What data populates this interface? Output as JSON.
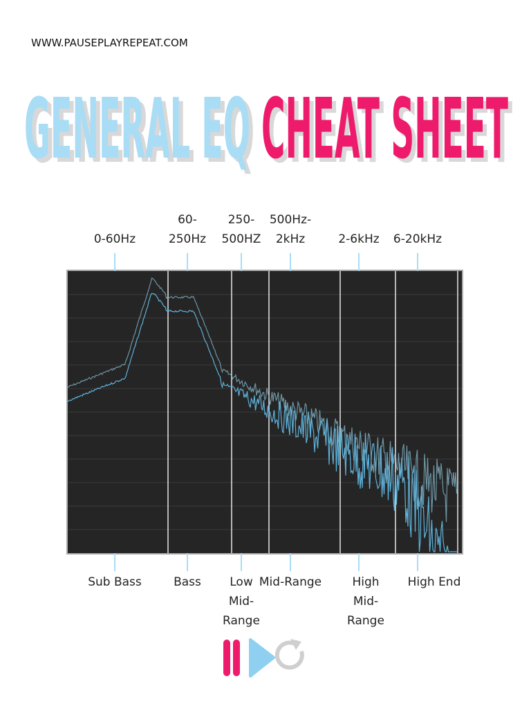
{
  "header": {
    "url": "WWW.PAUSEPLAYREPEAT.COM",
    "title_part1": "GENERAL EQ",
    "title_part2": "CHEAT SHEET"
  },
  "bands": [
    {
      "range": "0-60Hz",
      "name": "Sub Bass"
    },
    {
      "range": "60-250Hz",
      "name": "Bass"
    },
    {
      "range": "250-500HZ",
      "name": "Low Mid-Range"
    },
    {
      "range": "500Hz-2kHz",
      "name": "Mid-Range"
    },
    {
      "range": "2-6kHz",
      "name": "High Mid-Range"
    },
    {
      "range": "6-20kHz",
      "name": "High End"
    }
  ]
}
